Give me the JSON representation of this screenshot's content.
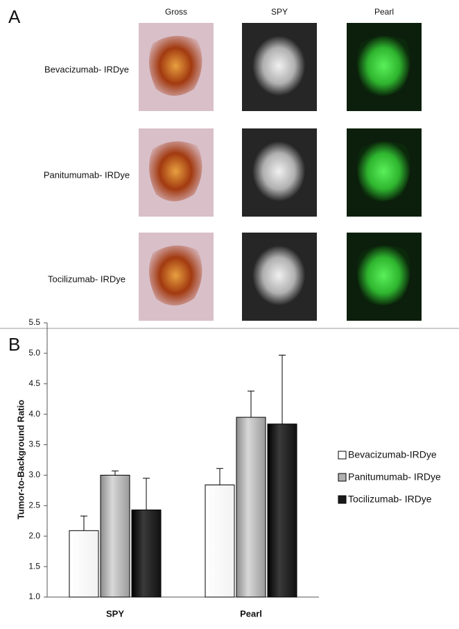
{
  "panel_a": {
    "label": "A",
    "columns": [
      "Gross",
      "SPY",
      "Pearl"
    ],
    "rows": [
      "Bevacizumab- IRDye",
      "Panitumumab- IRDye",
      "Tocilizumab- IRDye"
    ]
  },
  "chart_data": {
    "type": "bar",
    "panel_label": "B",
    "ylabel": "Tumor-to-Background Ratio",
    "categories": [
      "SPY",
      "Pearl"
    ],
    "series": [
      {
        "name": "Bevacizumab-IRDye",
        "color": "#ffffff",
        "values": [
          2.09,
          2.84
        ],
        "errors": [
          0.24,
          0.27
        ]
      },
      {
        "name": "Panitumumab- IRDye",
        "color": "#b0b0b0",
        "values": [
          3.0,
          3.95
        ],
        "errors": [
          0.07,
          0.43
        ]
      },
      {
        "name": "Tocilizumab- IRDye",
        "color": "#1a1a1a",
        "values": [
          2.43,
          3.84
        ],
        "errors": [
          0.52,
          1.13
        ]
      }
    ],
    "ylim": [
      1.0,
      5.5
    ],
    "yticks": [
      {
        "value": 1,
        "label": "1.0"
      },
      {
        "value": 1.5,
        "label": "1.5"
      },
      {
        "value": 2,
        "label": "2.0"
      },
      {
        "value": 2.5,
        "label": "2.5"
      },
      {
        "value": 3,
        "label": "3.0"
      },
      {
        "value": 3.5,
        "label": "3.5"
      },
      {
        "value": 4,
        "label": "4.0"
      },
      {
        "value": 4.5,
        "label": "4.5"
      },
      {
        "value": 5,
        "label": "5.0"
      },
      {
        "value": 5.5,
        "label": "5.5"
      }
    ],
    "legend": "right"
  }
}
